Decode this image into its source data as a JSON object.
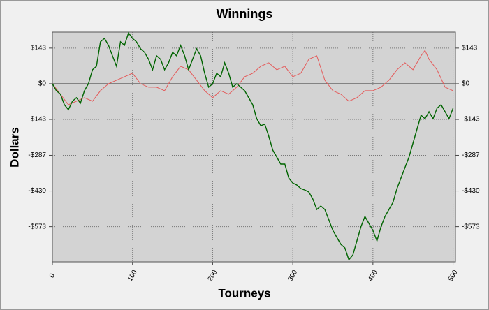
{
  "chart_data": {
    "type": "line",
    "title": "Winnings",
    "x_label": "Tourneys",
    "y_label": "Dollars",
    "xlim": [
      0,
      503
    ],
    "xticks": [
      0,
      100,
      200,
      300,
      400,
      500
    ],
    "ylim": [
      -714,
      207
    ],
    "yticks": [
      {
        "value": 143,
        "label": "$143"
      },
      {
        "value": 0,
        "label": "$0"
      },
      {
        "value": -143,
        "label": "-$143"
      },
      {
        "value": -287,
        "label": "-$287"
      },
      {
        "value": -430,
        "label": "-$430"
      },
      {
        "value": -573,
        "label": "-$573"
      }
    ],
    "grid": true,
    "series": [
      {
        "color": "#e45a5a",
        "x": [
          0,
          10,
          20,
          30,
          40,
          50,
          60,
          70,
          80,
          90,
          100,
          110,
          120,
          130,
          140,
          150,
          160,
          170,
          180,
          190,
          200,
          210,
          220,
          230,
          240,
          250,
          260,
          270,
          280,
          290,
          300,
          310,
          320,
          330,
          340,
          350,
          360,
          370,
          380,
          390,
          400,
          410,
          420,
          430,
          440,
          450,
          460,
          465,
          470,
          480,
          490,
          500
        ],
        "values": [
          0,
          -42,
          -84,
          -70,
          -56,
          -70,
          -28,
          0,
          14,
          28,
          42,
          0,
          -14,
          -14,
          -28,
          28,
          70,
          56,
          14,
          -28,
          -56,
          -28,
          -42,
          -14,
          28,
          42,
          70,
          84,
          56,
          70,
          28,
          42,
          98,
          112,
          14,
          -28,
          -42,
          -70,
          -56,
          -28,
          -28,
          -14,
          14,
          56,
          84,
          56,
          112,
          134,
          98,
          56,
          -14,
          -28
        ]
      },
      {
        "color": "#006400",
        "x": [
          0,
          5,
          10,
          15,
          20,
          25,
          30,
          35,
          40,
          45,
          50,
          55,
          60,
          65,
          70,
          75,
          80,
          85,
          90,
          95,
          100,
          105,
          110,
          115,
          120,
          125,
          130,
          135,
          140,
          145,
          150,
          155,
          160,
          165,
          170,
          175,
          180,
          185,
          190,
          195,
          200,
          205,
          210,
          215,
          220,
          225,
          230,
          235,
          240,
          245,
          250,
          255,
          260,
          265,
          270,
          275,
          280,
          285,
          290,
          295,
          300,
          305,
          310,
          315,
          320,
          325,
          330,
          335,
          340,
          345,
          350,
          355,
          360,
          365,
          370,
          375,
          380,
          385,
          390,
          395,
          400,
          405,
          410,
          415,
          420,
          425,
          430,
          435,
          440,
          445,
          450,
          455,
          460,
          465,
          470,
          475,
          480,
          485,
          490,
          495,
          500
        ],
        "values": [
          0,
          -28,
          -42,
          -84,
          -104,
          -70,
          -56,
          -78,
          -28,
          0,
          56,
          70,
          168,
          182,
          154,
          112,
          70,
          168,
          154,
          204,
          182,
          168,
          140,
          126,
          98,
          56,
          112,
          98,
          56,
          84,
          126,
          112,
          154,
          112,
          56,
          98,
          140,
          112,
          42,
          -14,
          0,
          42,
          28,
          84,
          42,
          -14,
          0,
          -14,
          -28,
          -56,
          -84,
          -140,
          -168,
          -162,
          -210,
          -266,
          -294,
          -322,
          -322,
          -378,
          -398,
          -406,
          -420,
          -426,
          -434,
          -462,
          -504,
          -490,
          -504,
          -546,
          -588,
          -616,
          -644,
          -658,
          -706,
          -686,
          -630,
          -574,
          -532,
          -560,
          -588,
          -630,
          -574,
          -532,
          -504,
          -476,
          -420,
          -378,
          -336,
          -294,
          -238,
          -182,
          -126,
          -140,
          -112,
          -140,
          -98,
          -84,
          -112,
          -140,
          -98
        ]
      }
    ]
  }
}
